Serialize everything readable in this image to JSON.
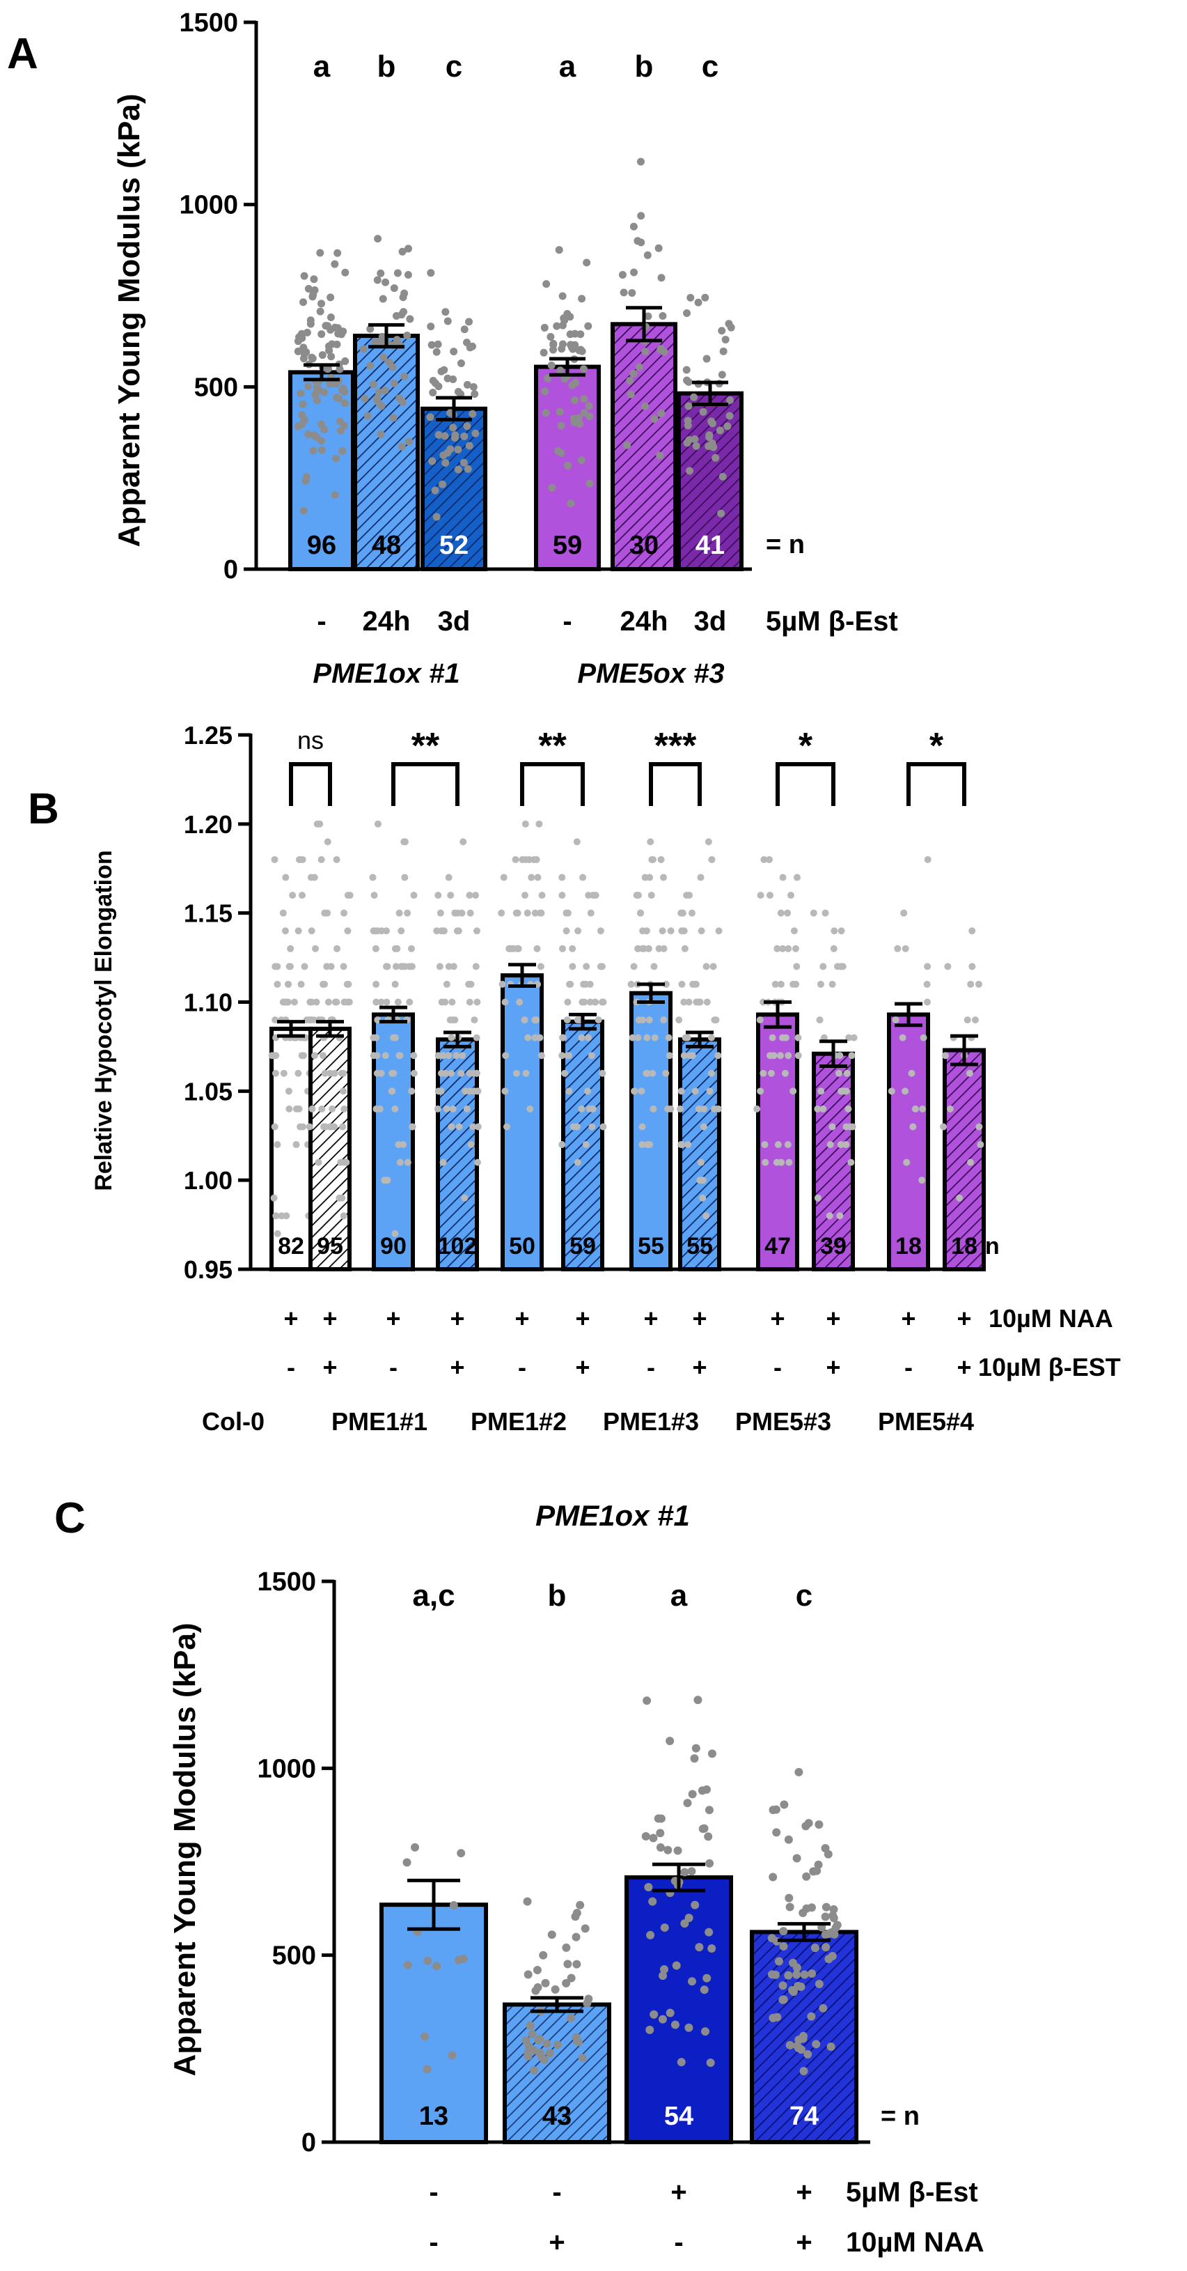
{
  "colors": {
    "light_blue": "#5ca3f5",
    "mid_blue": "#2f78d6",
    "dark_blue": "#1560c8",
    "navy": "#0b1fc4",
    "royal": "#2233d8",
    "purple": "#b052dc",
    "purple_light": "#c06ae6",
    "purple_dark": "#7a2aa8",
    "dot": "#8c8c8c",
    "dot_light": "#b8b8b8"
  },
  "chart_data": [
    {
      "panel": "A",
      "type": "bar",
      "ylabel": "Apparent Young Modulus (kPa)",
      "ylim": [
        0,
        1500
      ],
      "yticks": [
        "0",
        "500",
        "1000",
        "1500"
      ],
      "n_suffix": "= n",
      "bars": [
        {
          "category": "-",
          "group": "PME1ox #1",
          "value": 540,
          "sem": 20,
          "n": "96",
          "letter": "a",
          "color": "light_blue",
          "hatch": false
        },
        {
          "category": "24h",
          "group": "PME1ox #1",
          "value": 640,
          "sem": 30,
          "n": "48",
          "letter": "b",
          "color": "light_blue",
          "hatch": true
        },
        {
          "category": "3d",
          "group": "PME1ox #1",
          "value": 440,
          "sem": 30,
          "n": "52",
          "letter": "c",
          "color": "dark_blue",
          "hatch": true
        },
        {
          "category": "-",
          "group": "PME5ox #3",
          "value": 555,
          "sem": 22,
          "n": "59",
          "letter": "a",
          "color": "purple",
          "hatch": false
        },
        {
          "category": "24h",
          "group": "PME5ox #3",
          "value": 672,
          "sem": 45,
          "n": "30",
          "letter": "b",
          "color": "purple",
          "hatch": true
        },
        {
          "category": "3d",
          "group": "PME5ox #3",
          "value": 482,
          "sem": 30,
          "n": "41",
          "letter": "c",
          "color": "purple_dark",
          "hatch": true
        }
      ],
      "treatment_label": "5µM β-Est",
      "groups": [
        "PME1ox #1",
        "PME5ox #3"
      ]
    },
    {
      "panel": "B",
      "type": "bar",
      "ylabel": "Relative Hypocotyl Elongation",
      "ylim": [
        0.95,
        1.25
      ],
      "yticks": [
        "0.95",
        "1.00",
        "1.05",
        "1.10",
        "1.15",
        "1.20",
        "1.25"
      ],
      "n_suffix": "=n",
      "bars": [
        {
          "value": 1.085,
          "sem": 0.004,
          "n": "82",
          "color": "white",
          "hatch": false,
          "naa": "+",
          "est": "-"
        },
        {
          "value": 1.085,
          "sem": 0.004,
          "n": "95",
          "color": "white",
          "hatch": true,
          "naa": "+",
          "est": "+"
        },
        {
          "value": 1.093,
          "sem": 0.004,
          "n": "90",
          "color": "light_blue",
          "hatch": false,
          "naa": "+",
          "est": "-"
        },
        {
          "value": 1.079,
          "sem": 0.004,
          "n": "102",
          "color": "light_blue",
          "hatch": true,
          "naa": "+",
          "est": "+"
        },
        {
          "value": 1.115,
          "sem": 0.006,
          "n": "50",
          "color": "light_blue",
          "hatch": false,
          "naa": "+",
          "est": "-"
        },
        {
          "value": 1.089,
          "sem": 0.004,
          "n": "59",
          "color": "light_blue",
          "hatch": true,
          "naa": "+",
          "est": "+"
        },
        {
          "value": 1.105,
          "sem": 0.005,
          "n": "55",
          "color": "light_blue",
          "hatch": false,
          "naa": "+",
          "est": "-"
        },
        {
          "value": 1.079,
          "sem": 0.004,
          "n": "55",
          "color": "light_blue",
          "hatch": true,
          "naa": "+",
          "est": "+"
        },
        {
          "value": 1.093,
          "sem": 0.007,
          "n": "47",
          "color": "purple",
          "hatch": false,
          "naa": "+",
          "est": "-"
        },
        {
          "value": 1.071,
          "sem": 0.007,
          "n": "39",
          "color": "purple",
          "hatch": true,
          "naa": "+",
          "est": "+"
        },
        {
          "value": 1.093,
          "sem": 0.006,
          "n": "18",
          "color": "purple",
          "hatch": false,
          "naa": "+",
          "est": "-"
        },
        {
          "value": 1.073,
          "sem": 0.008,
          "n": "18",
          "color": "purple",
          "hatch": true,
          "naa": "+",
          "est": "+"
        }
      ],
      "significance": [
        "ns",
        "**",
        "**",
        "***",
        "*",
        "*"
      ],
      "row_labels": [
        "10µM NAA",
        "10µM β-EST"
      ],
      "genotypes": [
        "Col-0",
        "PME1#1",
        "PME1#2",
        "PME1#3",
        "PME5#3",
        "PME5#4"
      ]
    },
    {
      "panel": "C",
      "type": "bar",
      "title": "PME1ox #1",
      "ylabel": "Apparent Young Modulus (kPa)",
      "ylim": [
        0,
        1500
      ],
      "yticks": [
        "0",
        "500",
        "1000",
        "1500"
      ],
      "n_suffix": "= n",
      "bars": [
        {
          "value": 635,
          "sem": 65,
          "n": "13",
          "letter": "a,c",
          "color": "light_blue",
          "hatch": false,
          "est": "-",
          "naa": "-"
        },
        {
          "value": 368,
          "sem": 18,
          "n": "43",
          "letter": "b",
          "color": "light_blue",
          "hatch": true,
          "est": "-",
          "naa": "+"
        },
        {
          "value": 708,
          "sem": 35,
          "n": "54",
          "letter": "a",
          "color": "navy",
          "hatch": false,
          "est": "+",
          "naa": "-"
        },
        {
          "value": 562,
          "sem": 22,
          "n": "74",
          "letter": "c",
          "color": "royal",
          "hatch": true,
          "est": "+",
          "naa": "+"
        }
      ],
      "row_labels": [
        "5µM β-Est",
        "10µM NAA"
      ]
    }
  ],
  "panel_letters": [
    "A",
    "B",
    "C"
  ]
}
